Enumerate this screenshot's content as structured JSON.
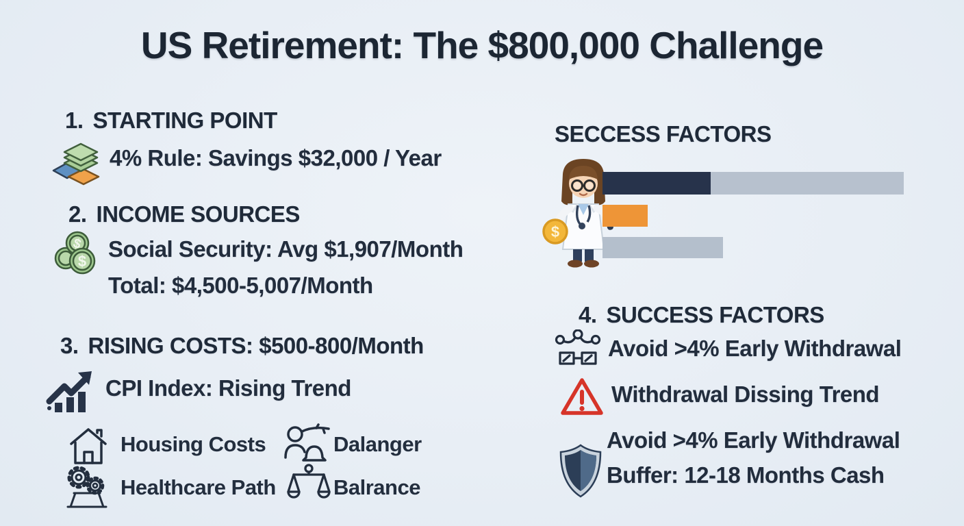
{
  "title": "US Retirement: The $800,000 Challenge",
  "colors": {
    "text": "#222d3d",
    "background": "#e8eef5",
    "bar_dark_navy": "#27334b",
    "bar_orange": "#ee9537",
    "bar_gray_blue": "#b4bfcc",
    "bar_track_gray": "#b7c1ce",
    "warning_red": "#d63429",
    "coin_gold": "#f3b73a",
    "coin_green": "#9ec88e",
    "shield_navy": "#2c3e57"
  },
  "left": {
    "starting_point": {
      "number": "1.",
      "heading": "STARTING POINT",
      "icon": "money-stack-icon",
      "rule_line": "4% Rule: Savings $32,000 / Year"
    },
    "income_sources": {
      "number": "2.",
      "heading": "INCOME SOURCES",
      "icon": "coins-icon",
      "social_security_line": "Social Security: Avg $1,907/Month",
      "total_line": "Total: $4,500-5,007/Month"
    },
    "rising_costs": {
      "number": "3.",
      "heading": "RISING COSTS: $500-800/Month",
      "icon": "chart-up-arrow-icon",
      "cpi_line": "CPI Index: Rising Trend"
    },
    "grid": [
      {
        "icon": "house-icon",
        "label": "Housing Costs"
      },
      {
        "icon": "person-bell-icon",
        "label": "Dalanger"
      },
      {
        "icon": "gears-icon",
        "label": "Healthcare Path"
      },
      {
        "icon": "scales-icon",
        "label": "Balrance"
      }
    ]
  },
  "right": {
    "chart_heading": "SECCESS FACTORS",
    "illustration": "doctor-with-coin",
    "success_factors": {
      "number": "4.",
      "heading": "SUCCESS FACTORS",
      "item1": {
        "icon": "network-icon",
        "label": "Avoid >4% Early Withdrawal"
      },
      "item2": {
        "icon": "warning-triangle-icon",
        "label": "Withdrawal Dissing Trend"
      },
      "item3": {
        "icon": "shield-icon",
        "line1": "Avoid >4% Early Withdrawal",
        "line2": "Buffer: 12-18 Months Cash"
      }
    }
  },
  "chart_data": {
    "type": "bar",
    "orientation": "horizontal",
    "title": "SECCESS FACTORS",
    "categories": [
      "factor-1",
      "factor-2",
      "factor-3"
    ],
    "values_pct": [
      36,
      15,
      40
    ],
    "bar_colors": [
      "#27334b",
      "#ee9537",
      "#b4bfcc"
    ],
    "has_track": [
      true,
      false,
      false
    ],
    "xlim": [
      0,
      100
    ],
    "grid": false,
    "legend": false,
    "notes": "three unlabeled horizontal bars; only first bar sits on a full-width gray track"
  }
}
